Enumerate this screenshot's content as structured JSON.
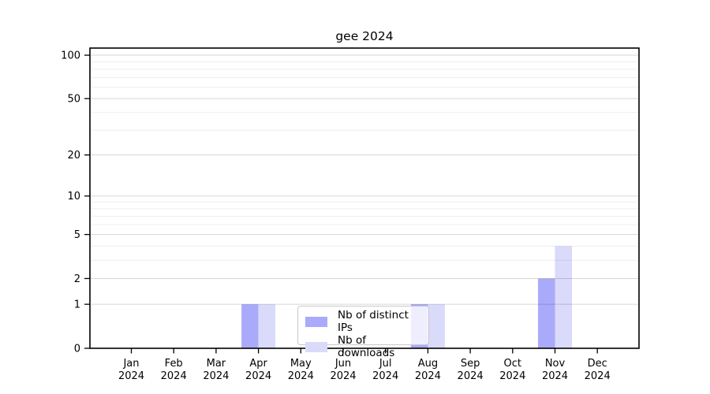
{
  "chart_data": {
    "type": "bar",
    "title": "gee 2024",
    "x": {
      "months": [
        "Jan",
        "Feb",
        "Mar",
        "Apr",
        "May",
        "Jun",
        "Jul",
        "Aug",
        "Sep",
        "Oct",
        "Nov",
        "Dec"
      ],
      "year": "2024"
    },
    "series": [
      {
        "name": "Nb of distinct IPs",
        "color": "#aaaafa",
        "values": [
          0,
          0,
          0,
          1,
          0,
          0,
          0,
          1,
          0,
          0,
          2,
          0
        ]
      },
      {
        "name": "Nb of downloads",
        "color": "#dadafa",
        "values": [
          0,
          0,
          0,
          1,
          0,
          0,
          0,
          1,
          0,
          0,
          4,
          0
        ]
      }
    ],
    "y_axis": {
      "scale": "log10(1+y)",
      "major_ticks": [
        0,
        1,
        2,
        5,
        10,
        20,
        50,
        100
      ],
      "minor_gridlines": [
        3,
        4,
        6,
        7,
        8,
        9,
        30,
        40,
        60,
        70,
        80,
        90
      ],
      "max": 112
    },
    "grid": true,
    "legend": {
      "position": "lower-center-inside"
    },
    "colors": {
      "axis": "#000000",
      "grid_major": "rgba(0,0,0,0.16)",
      "grid_minor": "rgba(0,0,0,0.065)",
      "text": "#000000"
    }
  }
}
